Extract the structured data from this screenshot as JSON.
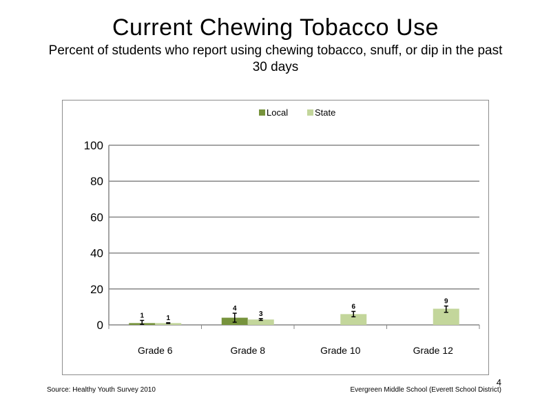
{
  "slide": {
    "title": "Current Chewing Tobacco Use",
    "subtitle": "Percent of students who report using chewing tobacco, snuff, or dip in the past 30 days",
    "source": "Source: Healthy Youth Survey 2010",
    "footer_right": "Evergreen Middle School (Everett School District)",
    "page_number": "4"
  },
  "chart_data": {
    "type": "bar",
    "title": "",
    "xlabel": "",
    "ylabel": "",
    "categories": [
      "Grade 6",
      "Grade 8",
      "Grade 10",
      "Grade 12"
    ],
    "ylim": [
      0,
      100
    ],
    "yticks": [
      0,
      20,
      40,
      60,
      80,
      100
    ],
    "grid": true,
    "legend": "top-center",
    "series": [
      {
        "name": "Local",
        "color": "#77933c",
        "values": [
          1,
          4,
          null,
          null
        ],
        "labels": [
          "1",
          "4",
          "",
          ""
        ],
        "error": [
          [
            0.3,
            2.5
          ],
          [
            1.5,
            6.5
          ],
          null,
          null
        ]
      },
      {
        "name": "State",
        "color": "#c3d69b",
        "values": [
          1,
          3,
          6,
          9
        ],
        "labels": [
          "1",
          "3",
          "6",
          "9"
        ],
        "error": [
          [
            0.8,
            1.2
          ],
          [
            2.5,
            3.5
          ],
          [
            4.5,
            7.5
          ],
          [
            7,
            10.5
          ]
        ]
      }
    ]
  }
}
